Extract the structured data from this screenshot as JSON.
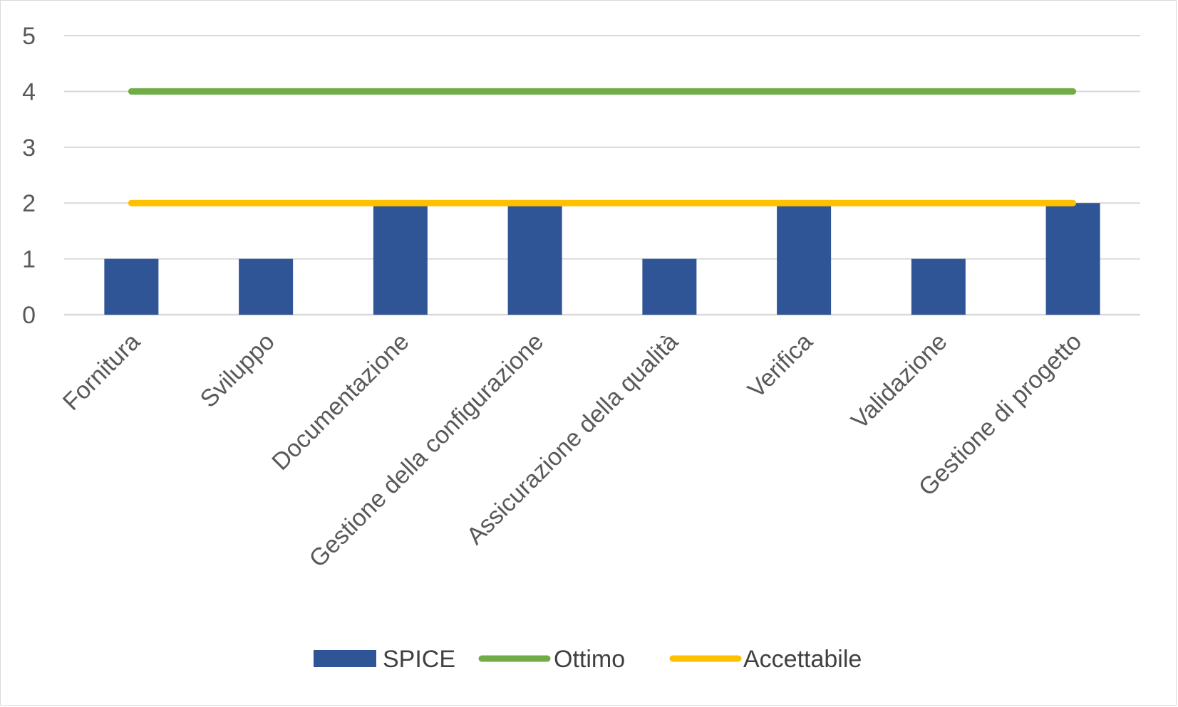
{
  "chart_data": {
    "type": "bar",
    "categories": [
      "Fornitura",
      "Sviluppo",
      "Documentazione",
      "Gestione della configurazione",
      "Assicurazione della qualità",
      "Verifica",
      "Validazione",
      "Gestione di progetto"
    ],
    "series": [
      {
        "name": "SPICE",
        "type": "bar",
        "color": "#2f5597",
        "values": [
          1,
          1,
          2,
          2,
          1,
          2,
          1,
          2
        ]
      },
      {
        "name": "Ottimo",
        "type": "line",
        "color": "#70ad47",
        "values": [
          4,
          4,
          4,
          4,
          4,
          4,
          4,
          4
        ]
      },
      {
        "name": "Accettabile",
        "type": "line",
        "color": "#ffc000",
        "values": [
          2,
          2,
          2,
          2,
          2,
          2,
          2,
          2
        ]
      }
    ],
    "ylim": [
      0,
      5
    ],
    "yticks": [
      "0",
      "1",
      "2",
      "3",
      "4",
      "5"
    ],
    "grid": true,
    "legend_position": "bottom",
    "title": "",
    "xlabel": "",
    "ylabel": ""
  }
}
